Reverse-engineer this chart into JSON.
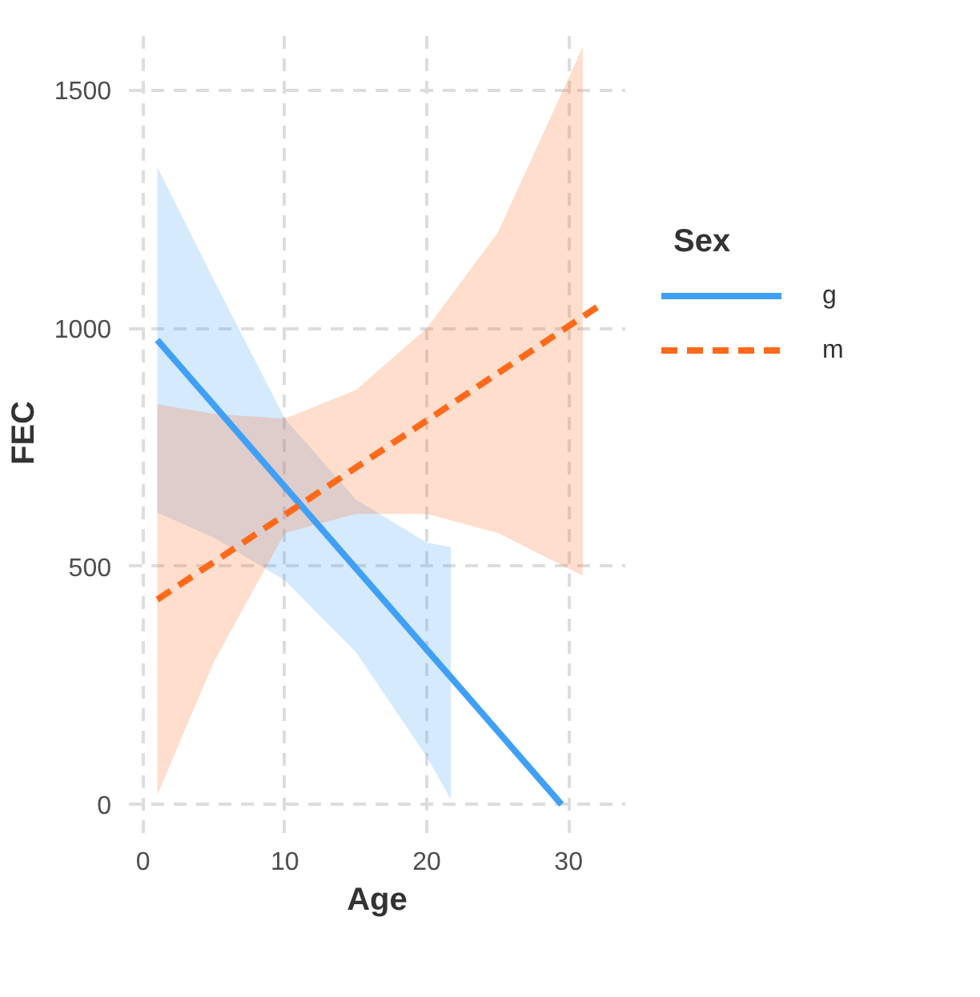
{
  "chart_data": {
    "type": "line",
    "xlabel": "Age",
    "ylabel": "FEC",
    "legend_title": "Sex",
    "xlim": [
      -1,
      34
    ],
    "xticks": [
      0,
      10,
      20,
      30
    ],
    "ylim": [
      -60,
      1620
    ],
    "yticks": [
      0,
      500,
      1000,
      1500
    ],
    "grid": true,
    "legend": "right",
    "marker": "none",
    "series": [
      {
        "name": "g",
        "color": "#3fa0f5",
        "line_style": "solid",
        "x": [
          1,
          5,
          10,
          15,
          20,
          21.7,
          29.5
        ],
        "values": [
          975,
          838,
          667,
          496,
          325,
          267,
          0
        ],
        "lower": [
          613,
          560,
          470,
          320,
          100,
          10,
          null
        ],
        "upper": [
          1338,
          1100,
          810,
          640,
          550,
          540,
          null
        ]
      },
      {
        "name": "m",
        "color": "#ff6a1a",
        "line_style": "dashed",
        "x": [
          1,
          5,
          10,
          15,
          20,
          25,
          31,
          32
        ],
        "values": [
          430,
          509,
          608,
          707,
          806,
          905,
          1024,
          1044
        ],
        "lower": [
          20,
          300,
          570,
          610,
          610,
          570,
          480,
          null
        ],
        "upper": [
          840,
          820,
          810,
          870,
          1000,
          1200,
          1590,
          null
        ]
      }
    ]
  }
}
